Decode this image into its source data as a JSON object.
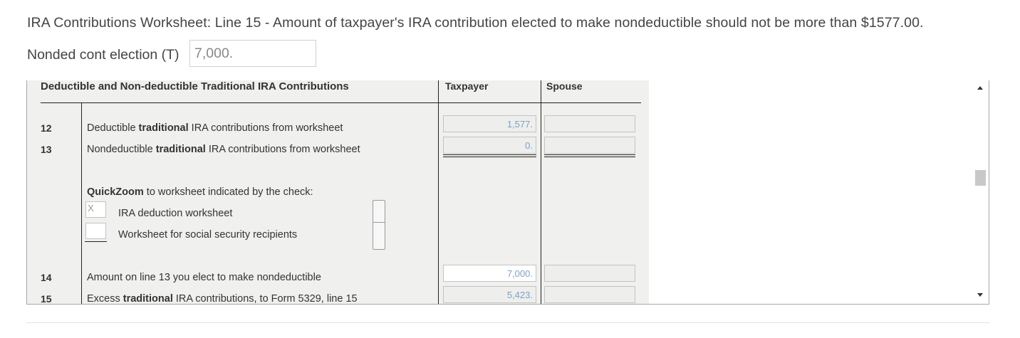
{
  "message": "IRA Contributions Worksheet: Line 15 - Amount of taxpayer's IRA contribution elected to make nondeductible should not be more than $1577.00.",
  "election": {
    "label": "Nonded cont election (T)",
    "value": "7,000."
  },
  "form": {
    "header": {
      "title": "Deductible and Non-deductible Traditional IRA Contributions",
      "taxpayer": "Taxpayer",
      "spouse": "Spouse"
    },
    "line12": {
      "num": "12",
      "pre": "Deductible ",
      "bold": "traditional",
      "post": " IRA contributions from worksheet",
      "taxpayer": "1,577.",
      "spouse": ""
    },
    "line13": {
      "num": "13",
      "pre": "Nondeductible ",
      "bold": "traditional",
      "post": " IRA contributions from worksheet",
      "taxpayer": "0.",
      "spouse": ""
    },
    "quickzoom": {
      "bold": "QuickZoom",
      "text": " to worksheet indicated by the check:",
      "items": [
        {
          "label": "IRA deduction worksheet",
          "checked": "X"
        },
        {
          "label": "Worksheet for social security recipients",
          "checked": ""
        }
      ]
    },
    "line14": {
      "num": "14",
      "text": "Amount on line 13 you elect to make nondeductible",
      "taxpayer": "7,000.",
      "spouse": ""
    },
    "line15": {
      "num": "15",
      "pre": "Excess ",
      "bold": "traditional",
      "post": " IRA contributions, to Form 5329, line 15",
      "taxpayer": "5,423.",
      "spouse": ""
    }
  },
  "scrollbar": {
    "up_icon": "triangle-up",
    "down_icon": "triangle-down"
  }
}
